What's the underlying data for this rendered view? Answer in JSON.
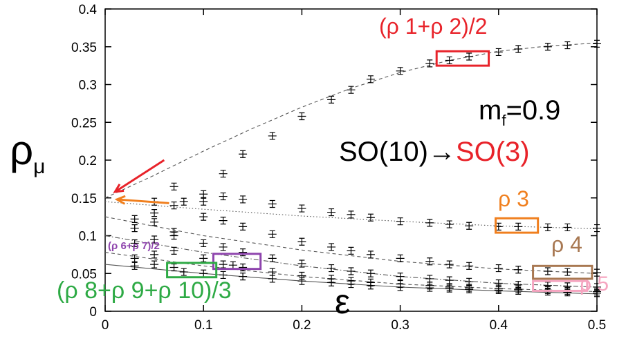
{
  "chart_data": {
    "type": "scatter",
    "title": "",
    "xlabel": "ε",
    "ylabel": "ρ",
    "ylabel_sub": "μ",
    "xlim": [
      0,
      0.5
    ],
    "ylim": [
      0,
      0.4
    ],
    "xticks": [
      "0",
      "0.1",
      "0.2",
      "0.3",
      "0.4",
      "0.5"
    ],
    "yticks": [
      "0",
      "0.05",
      "0.1",
      "0.15",
      "0.2",
      "0.25",
      "0.3",
      "0.35",
      "0.4"
    ],
    "marker": "cross",
    "info": {
      "mass_prefix": "m",
      "mass_sub": "f",
      "mass_value": "=0.9",
      "symmetry_from": "SO(10)→",
      "symmetry_to": "SO(3)"
    },
    "annotations": [
      {
        "text": "(ρ 1+ρ 2)/2",
        "color": "#e8232a"
      },
      {
        "text": "ρ 3",
        "color": "#f07f1e"
      },
      {
        "text": "ρ 4",
        "color": "#a87852"
      },
      {
        "text": "ρ 5",
        "color": "#f5a5c0"
      },
      {
        "text": "(ρ 6+ρ 7)/2",
        "color": "#8e44ad"
      },
      {
        "text": "(ρ 8+ρ 9+ρ 10)/3",
        "color": "#2eaa45"
      }
    ],
    "series": [
      {
        "color": "#000000",
        "x": [
          0.03,
          0.05,
          0.07,
          0.08,
          0.1,
          0.12,
          0.14,
          0.17,
          0.2,
          0.23,
          0.25,
          0.27,
          0.3,
          0.33,
          0.35,
          0.37,
          0.4,
          0.42,
          0.45,
          0.47,
          0.5
        ],
        "y": [
          0.11,
          0.145,
          0.165,
          0.145,
          0.155,
          0.182,
          0.208,
          0.232,
          0.258,
          0.28,
          0.293,
          0.307,
          0.318,
          0.328,
          0.332,
          0.337,
          0.343,
          0.347,
          0.35,
          0.352,
          0.354
        ]
      },
      {
        "color": "#000000",
        "x": [
          0.03,
          0.05,
          0.07,
          0.1,
          0.12,
          0.14,
          0.17,
          0.2,
          0.23,
          0.25,
          0.27,
          0.3,
          0.33,
          0.35,
          0.37,
          0.4,
          0.42,
          0.45,
          0.47,
          0.5
        ],
        "y": [
          0.122,
          0.13,
          0.14,
          0.145,
          0.152,
          0.148,
          0.142,
          0.136,
          0.131,
          0.128,
          0.124,
          0.119,
          0.117,
          0.115,
          0.113,
          0.112,
          0.112,
          0.111,
          0.111,
          0.11
        ]
      },
      {
        "color": "#000000",
        "x": [
          0.03,
          0.05,
          0.07,
          0.1,
          0.12,
          0.14,
          0.17,
          0.2,
          0.23,
          0.25,
          0.27,
          0.3,
          0.33,
          0.35,
          0.37,
          0.4,
          0.42,
          0.45,
          0.47,
          0.5
        ],
        "y": [
          0.11,
          0.118,
          0.105,
          0.125,
          0.12,
          0.112,
          0.102,
          0.092,
          0.085,
          0.08,
          0.075,
          0.07,
          0.066,
          0.062,
          0.06,
          0.057,
          0.055,
          0.053,
          0.052,
          0.051
        ]
      },
      {
        "color": "#000000",
        "x": [
          0.03,
          0.05,
          0.07,
          0.1,
          0.12,
          0.14,
          0.17,
          0.2,
          0.23,
          0.25,
          0.27,
          0.3,
          0.33,
          0.35,
          0.37,
          0.4,
          0.42,
          0.45,
          0.47,
          0.5
        ],
        "y": [
          0.09,
          0.095,
          0.1,
          0.09,
          0.085,
          0.078,
          0.07,
          0.063,
          0.057,
          0.053,
          0.05,
          0.046,
          0.043,
          0.041,
          0.039,
          0.037,
          0.035,
          0.034,
          0.033,
          0.032
        ]
      },
      {
        "color": "#000000",
        "x": [
          0.03,
          0.05,
          0.07,
          0.1,
          0.12,
          0.13,
          0.14,
          0.17,
          0.2,
          0.23,
          0.25,
          0.27,
          0.3,
          0.33,
          0.35,
          0.37,
          0.4,
          0.42,
          0.45,
          0.47,
          0.5
        ],
        "y": [
          0.07,
          0.075,
          0.08,
          0.07,
          0.062,
          0.061,
          0.058,
          0.052,
          0.047,
          0.043,
          0.04,
          0.038,
          0.036,
          0.034,
          0.032,
          0.031,
          0.03,
          0.029,
          0.028,
          0.027,
          0.026
        ]
      },
      {
        "color": "#000000",
        "x": [
          0.03,
          0.05,
          0.07,
          0.08,
          0.1,
          0.12,
          0.14,
          0.17,
          0.2,
          0.23,
          0.25,
          0.27,
          0.3,
          0.33,
          0.35,
          0.37,
          0.4,
          0.42,
          0.45,
          0.47,
          0.5
        ],
        "y": [
          0.06,
          0.062,
          0.058,
          0.052,
          0.05,
          0.048,
          0.046,
          0.043,
          0.04,
          0.038,
          0.036,
          0.034,
          0.032,
          0.031,
          0.03,
          0.029,
          0.028,
          0.027,
          0.026,
          0.025,
          0.024
        ]
      }
    ],
    "fit_curves": [
      {
        "style": "dashed",
        "x": [
          0,
          0.05,
          0.1,
          0.15,
          0.2,
          0.25,
          0.3,
          0.35,
          0.4,
          0.45,
          0.5
        ],
        "y": [
          0.15,
          0.18,
          0.212,
          0.242,
          0.27,
          0.295,
          0.316,
          0.332,
          0.344,
          0.351,
          0.355
        ]
      },
      {
        "style": "dotted",
        "x": [
          0,
          0.1,
          0.2,
          0.3,
          0.4,
          0.5
        ],
        "y": [
          0.145,
          0.135,
          0.126,
          0.119,
          0.113,
          0.109
        ]
      },
      {
        "style": "dashed",
        "x": [
          0,
          0.1,
          0.2,
          0.3,
          0.4,
          0.5
        ],
        "y": [
          0.125,
          0.1,
          0.081,
          0.066,
          0.056,
          0.05
        ]
      },
      {
        "style": "dashdot",
        "x": [
          0,
          0.1,
          0.2,
          0.3,
          0.4,
          0.5
        ],
        "y": [
          0.1,
          0.078,
          0.06,
          0.046,
          0.037,
          0.032
        ]
      },
      {
        "style": "dashed",
        "x": [
          0,
          0.1,
          0.2,
          0.3,
          0.4,
          0.5
        ],
        "y": [
          0.078,
          0.06,
          0.046,
          0.036,
          0.03,
          0.026
        ]
      },
      {
        "style": "solid",
        "x": [
          0,
          0.1,
          0.2,
          0.3,
          0.4,
          0.5
        ],
        "y": [
          0.062,
          0.05,
          0.04,
          0.032,
          0.027,
          0.023
        ]
      }
    ],
    "highlight_boxes": [
      {
        "color": "#e8232a",
        "x": [
          0.337,
          0.39
        ],
        "y": [
          0.325,
          0.344
        ]
      },
      {
        "color": "#f07f1e",
        "x": [
          0.397,
          0.44
        ],
        "y": [
          0.104,
          0.123
        ]
      },
      {
        "color": "#a87852",
        "x": [
          0.435,
          0.495
        ],
        "y": [
          0.043,
          0.06
        ]
      },
      {
        "color": "#f5a5c0",
        "x": [
          0.435,
          0.49
        ],
        "y": [
          0.027,
          0.04
        ]
      },
      {
        "color": "#8e44ad",
        "x": [
          0.11,
          0.158
        ],
        "y": [
          0.056,
          0.076
        ]
      },
      {
        "color": "#2eaa45",
        "x": [
          0.063,
          0.113
        ],
        "y": [
          0.045,
          0.064
        ]
      }
    ],
    "arrows": [
      {
        "color": "#e8232a",
        "from": [
          0.06,
          0.2
        ],
        "to": [
          0.01,
          0.158
        ]
      },
      {
        "color": "#f07f1e",
        "from": [
          0.065,
          0.143
        ],
        "to": [
          0.012,
          0.148
        ]
      }
    ]
  }
}
